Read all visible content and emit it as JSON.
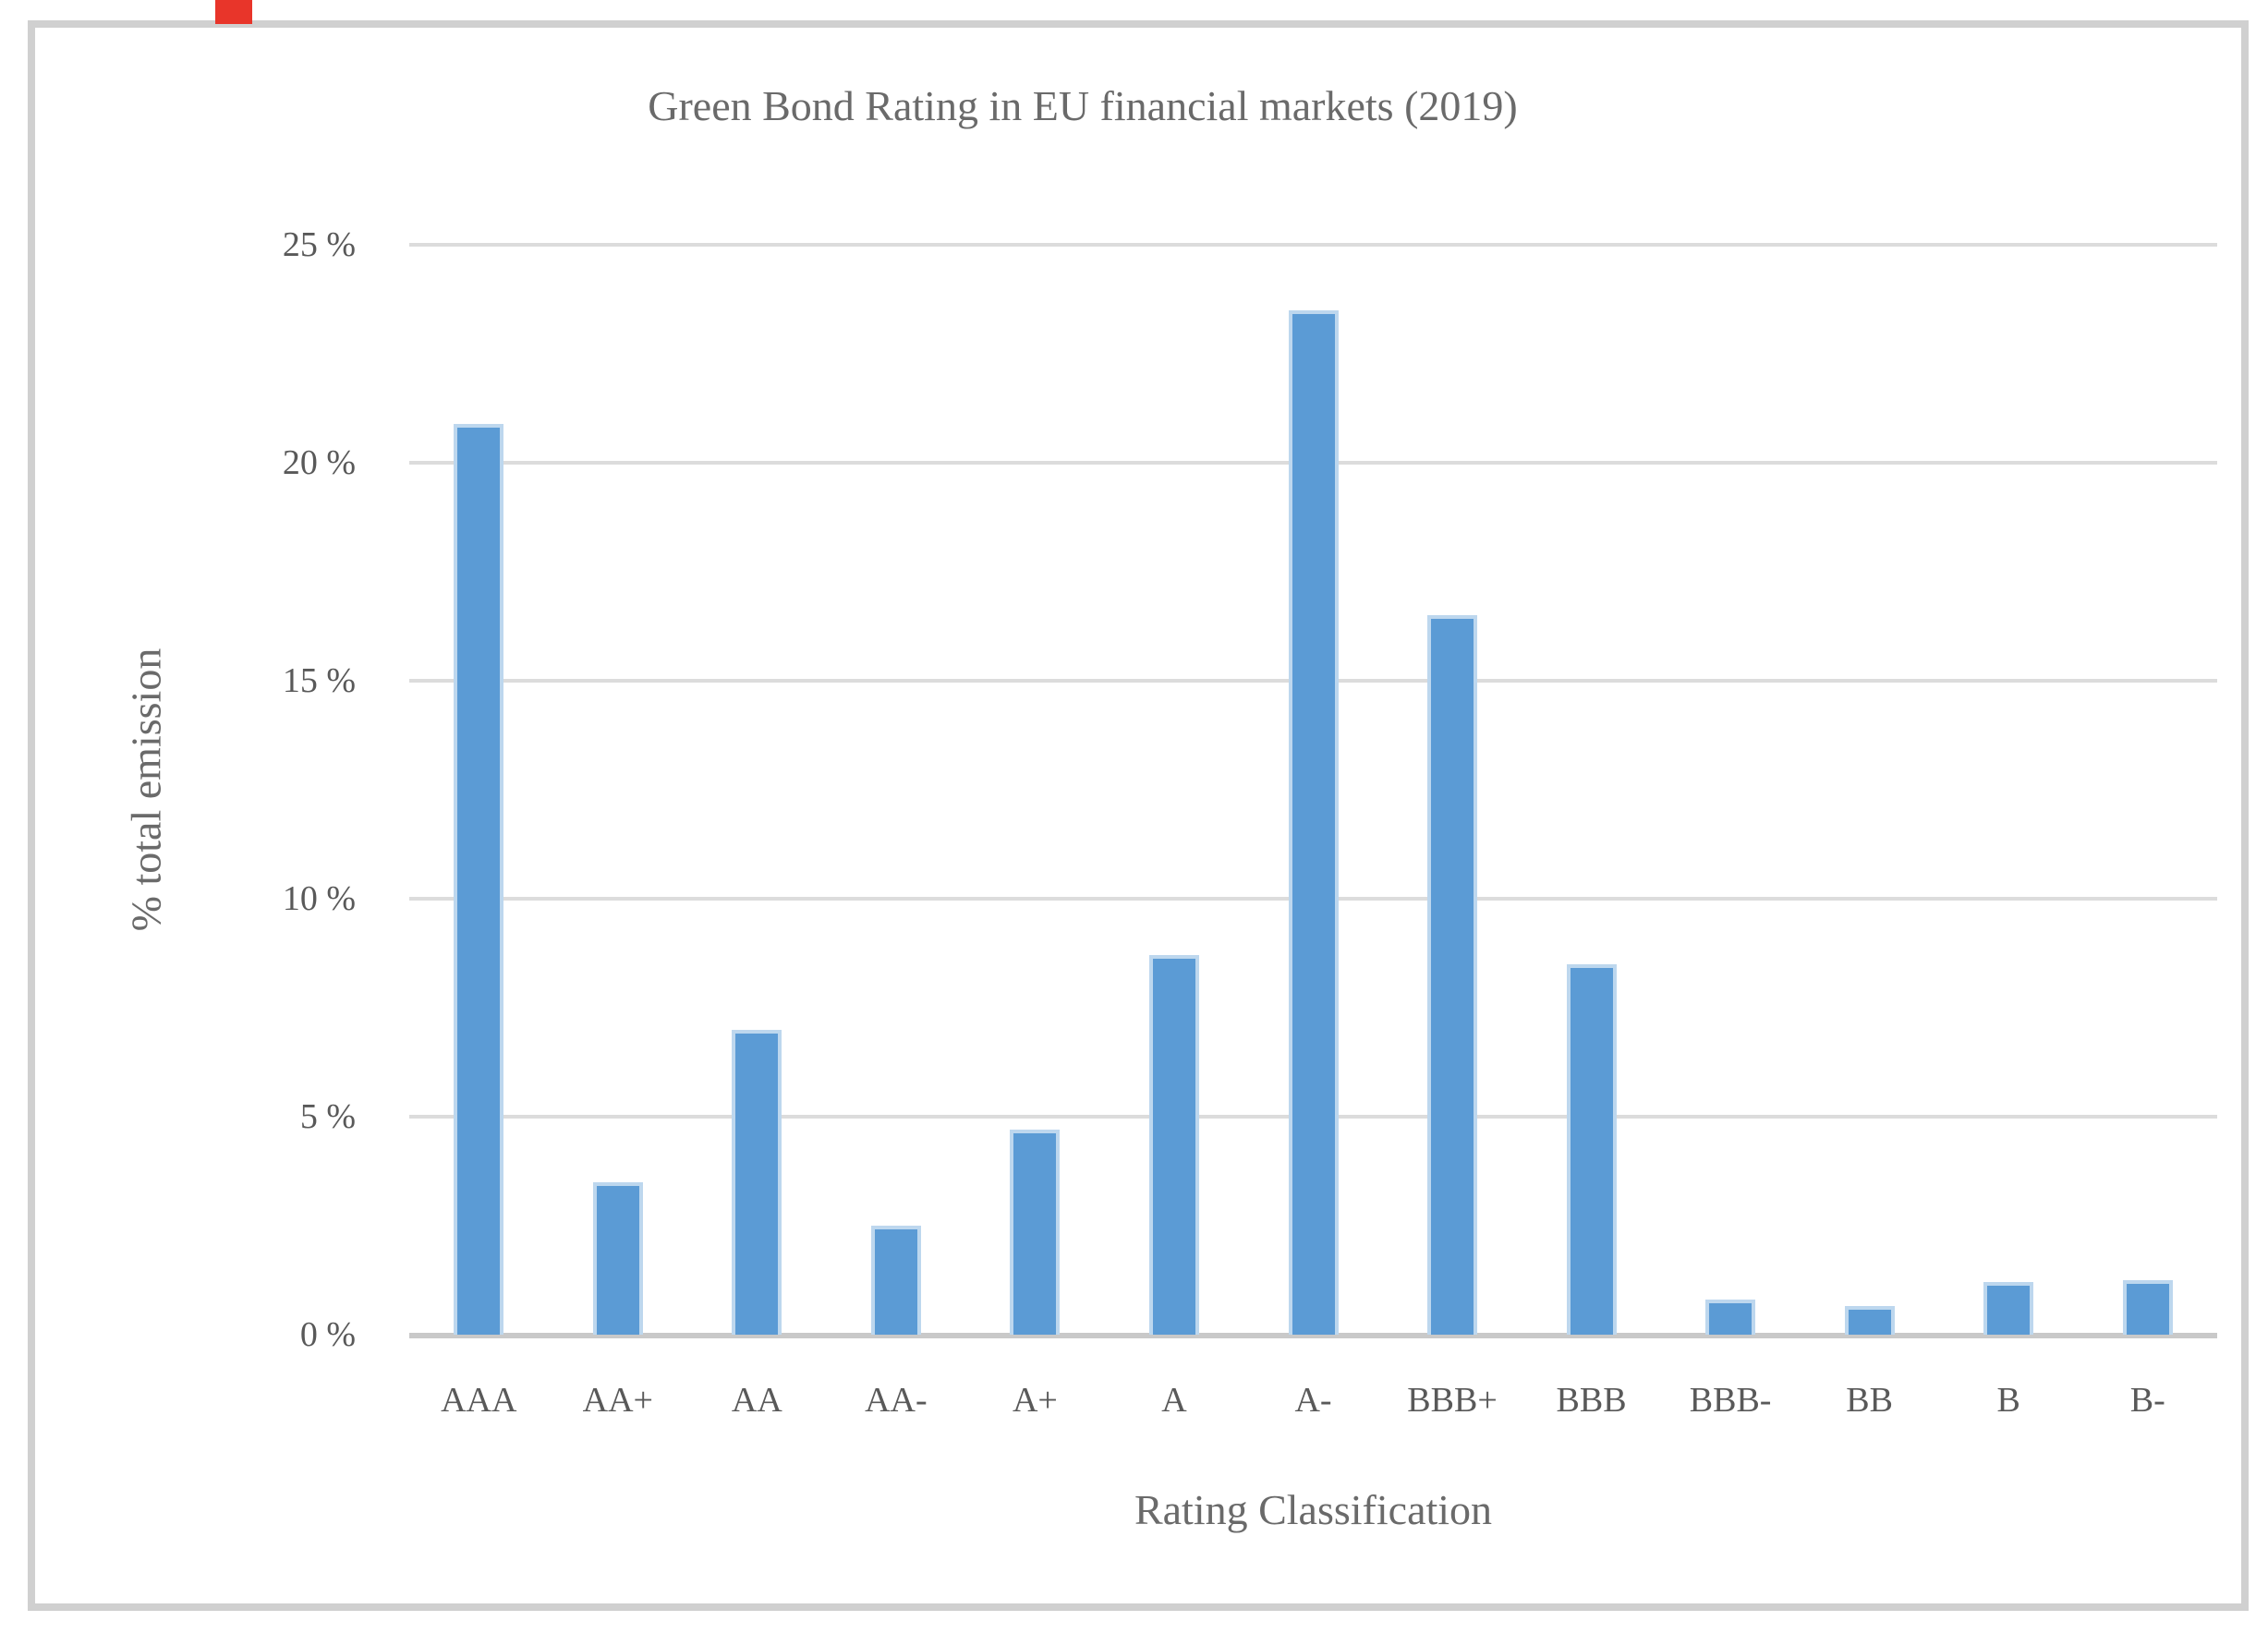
{
  "page": {
    "background": "#ffffff",
    "frame_border_color": "#d0d0d0"
  },
  "annotations": {
    "top_left_marker_color": "#e8352a"
  },
  "chart_data": {
    "type": "bar",
    "title": "Green Bond Rating in EU financial markets (2019)",
    "xlabel": "Rating Classification",
    "ylabel": "% total emission",
    "categories": [
      "AAA",
      "AA+",
      "AA",
      "AA-",
      "A+",
      "A",
      "A-",
      "BBB+",
      "BBB",
      "BBB-",
      "BB",
      "B",
      "B-"
    ],
    "values": [
      20.9,
      3.5,
      7.0,
      2.5,
      4.7,
      8.7,
      23.5,
      16.5,
      8.5,
      0.8,
      0.65,
      1.2,
      1.25
    ],
    "unit": "%",
    "ylim": [
      0,
      25
    ],
    "yticks": [
      0,
      5,
      10,
      15,
      20,
      25
    ],
    "ytick_labels": [
      "0 %",
      "5 %",
      "10 %",
      "15 %",
      "20 %",
      "25 %"
    ],
    "grid": true,
    "legend": "none",
    "bar_color": "#5b9bd5",
    "bar_edge_color": "#bdd7ee",
    "gridline_color": "#dcdcdc",
    "axis_line_color": "#c9c9c9",
    "text_color": "#595959",
    "title_color": "#6a6a6a"
  }
}
